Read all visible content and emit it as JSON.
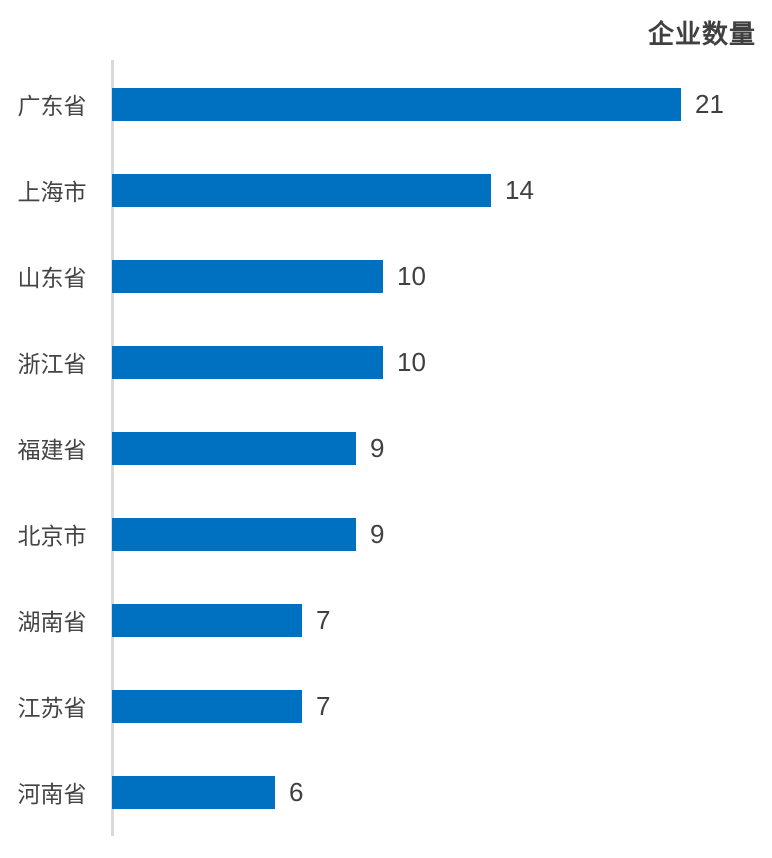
{
  "chart_data": {
    "type": "bar",
    "orientation": "horizontal",
    "title": "企业数量",
    "categories": [
      "广东省",
      "上海市",
      "山东省",
      "浙江省",
      "福建省",
      "北京市",
      "湖南省",
      "江苏省",
      "河南省"
    ],
    "values": [
      21,
      14,
      10,
      10,
      9,
      9,
      7,
      7,
      6
    ],
    "xlabel": "",
    "ylabel": "",
    "xlim": [
      0,
      21
    ],
    "grid": false,
    "legend": false,
    "data_labels": true,
    "colors": {
      "bar": "#0070c0",
      "axis_line": "#d9d9d9",
      "title_text": "#404040",
      "category_text": "#444444",
      "value_text": "#404040"
    }
  }
}
